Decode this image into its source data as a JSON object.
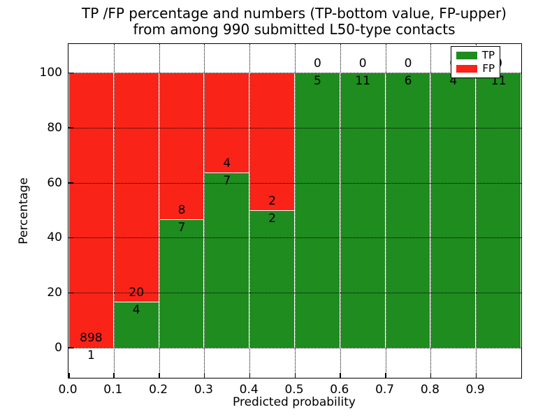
{
  "figure": {
    "title_line1": "TP /FP percentage and numbers (TP-bottom value, FP-upper)",
    "title_line2": "from among 990 submitted L50-type contacts"
  },
  "chart_data": {
    "type": "bar",
    "stacked": true,
    "normalized_to_percent": true,
    "title": "TP /FP percentage and numbers (TP-bottom value, FP-upper) from among 990 submitted L50-type contacts",
    "xlabel": "Predicted probability",
    "ylabel": "Percentage",
    "total_contacts": 990,
    "bin_width": 0.1,
    "bin_left_edges": [
      0.0,
      0.1,
      0.2,
      0.3,
      0.4,
      0.5,
      0.6,
      0.7,
      0.8,
      0.9
    ],
    "series": [
      {
        "name": "TP",
        "color": "#1e8c1e",
        "counts": [
          1,
          4,
          7,
          7,
          2,
          5,
          11,
          6,
          4,
          11
        ]
      },
      {
        "name": "FP",
        "color": "#fa2318",
        "counts": [
          898,
          20,
          8,
          4,
          2,
          0,
          0,
          0,
          0,
          0
        ]
      }
    ],
    "tp_percent_per_bin": [
      0.11,
      16.67,
      46.67,
      63.64,
      50.0,
      100.0,
      100.0,
      100.0,
      100.0,
      100.0
    ],
    "xticks": [
      "0.0",
      "0.1",
      "0.2",
      "0.3",
      "0.4",
      "0.5",
      "0.6",
      "0.7",
      "0.8",
      "0.9"
    ],
    "yticks": [
      0,
      20,
      40,
      60,
      80,
      100
    ],
    "xlim": [
      0.0,
      1.0
    ],
    "ylim": [
      -11,
      110.5
    ],
    "grid": true,
    "grid_style": "dotted",
    "legend_position": "upper right"
  }
}
